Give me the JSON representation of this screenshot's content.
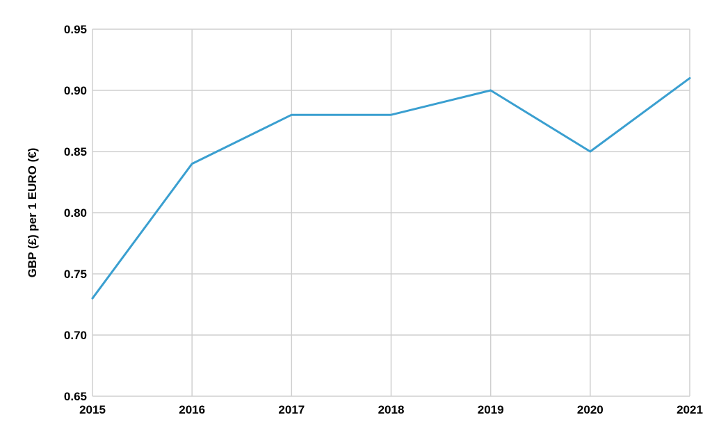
{
  "chart_data": {
    "type": "line",
    "title": "",
    "xlabel": "",
    "ylabel": "GBP (£) per 1 EURO (€)",
    "x": [
      "2015",
      "2016",
      "2017",
      "2018",
      "2019",
      "2020",
      "2021"
    ],
    "series": [
      {
        "values": [
          0.73,
          0.84,
          0.88,
          0.88,
          0.9,
          0.85,
          0.91
        ],
        "color": "#3a9fd0"
      }
    ],
    "ylim": [
      0.65,
      0.95
    ],
    "yticks": [
      "0.65",
      "0.70",
      "0.75",
      "0.80",
      "0.85",
      "0.90",
      "0.95"
    ],
    "grid": true,
    "legend": "none"
  }
}
